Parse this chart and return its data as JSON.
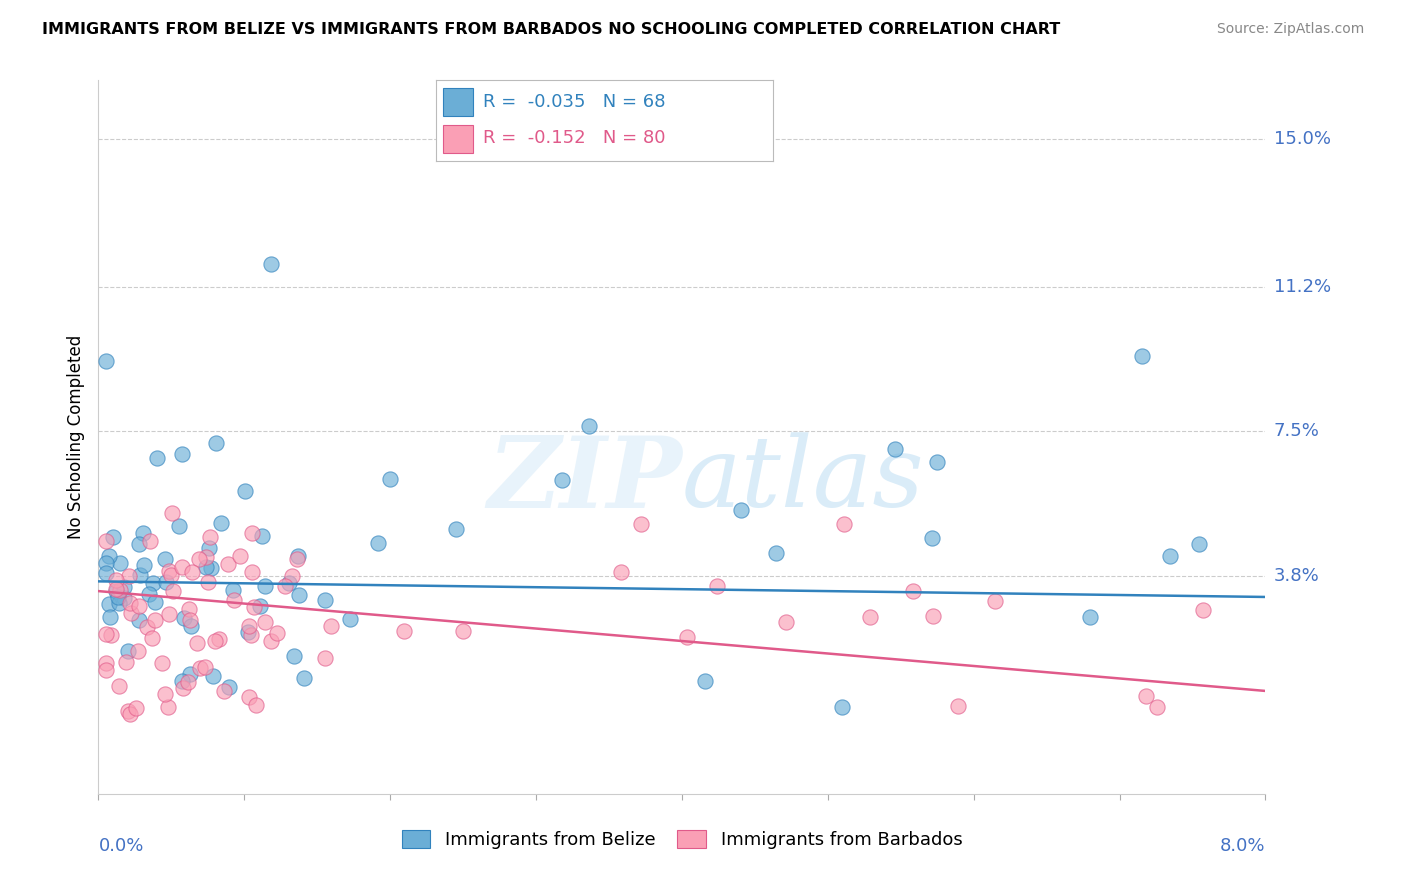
{
  "title": "IMMIGRANTS FROM BELIZE VS IMMIGRANTS FROM BARBADOS NO SCHOOLING COMPLETED CORRELATION CHART",
  "source": "Source: ZipAtlas.com",
  "ylabel": "No Schooling Completed",
  "ytick_vals": [
    0.15,
    0.112,
    0.075,
    0.038
  ],
  "ytick_labels": [
    "15.0%",
    "11.2%",
    "7.5%",
    "3.8%"
  ],
  "xlim": [
    0.0,
    0.08
  ],
  "ylim": [
    -0.018,
    0.165
  ],
  "legend_r_belize": "-0.035",
  "legend_n_belize": "68",
  "legend_r_barbados": "-0.152",
  "legend_n_barbados": "80",
  "color_belize": "#6baed6",
  "color_barbados": "#fa9fb5",
  "color_belize_line": "#3182bd",
  "color_barbados_line": "#e05a8a",
  "color_ytick": "#4472c4",
  "belize_trend_intercept": 0.0365,
  "belize_trend_slope": -0.05,
  "barbados_trend_intercept": 0.034,
  "barbados_trend_slope": -0.32
}
